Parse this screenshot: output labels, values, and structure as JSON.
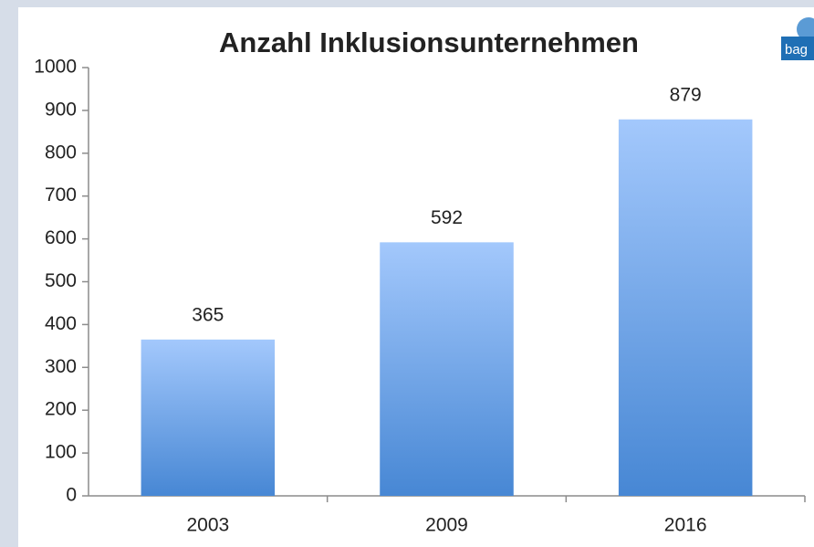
{
  "logo": {
    "text": "bag"
  },
  "chart_data": {
    "type": "bar",
    "title": "Anzahl Inklusionsunternehmen",
    "categories": [
      "2003",
      "2009",
      "2016"
    ],
    "values": [
      365,
      592,
      879
    ],
    "gradient": [
      "#a3c8fc",
      "#4787d4"
    ],
    "ylim": [
      0,
      1000
    ],
    "yticks": [
      0,
      100,
      200,
      300,
      400,
      500,
      600,
      700,
      800,
      900,
      1000
    ],
    "grid": false
  }
}
